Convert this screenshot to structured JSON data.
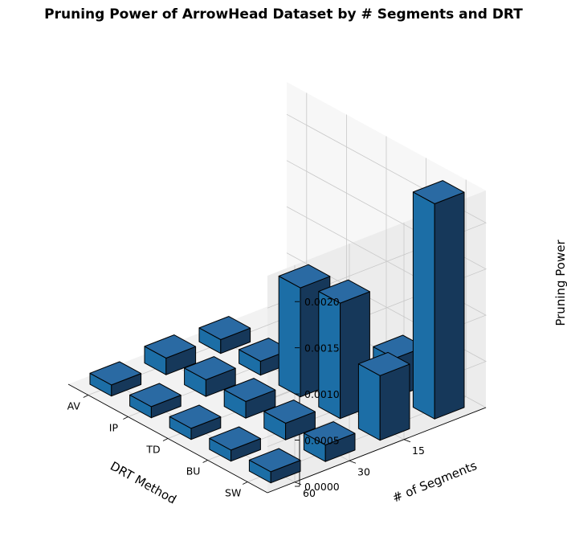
{
  "chart_data": {
    "type": "bar3d",
    "title": "Pruning Power of ArrowHead Dataset by # Segments and DRT",
    "xlabel": "DRT Method",
    "ylabel": "# of Segments",
    "zlabel": "Pruning Power",
    "drt_methods": [
      "AV",
      "IP",
      "TD",
      "BU",
      "SW"
    ],
    "segments": [
      "60",
      "30",
      "15"
    ],
    "z_ticks": [
      "0.0000",
      "0.0005",
      "0.0010",
      "0.0015",
      "0.0020"
    ],
    "zlim": [
      0,
      0.00235
    ],
    "series": [
      {
        "name": "60",
        "values": [
          0.00012,
          0.00012,
          0.00012,
          0.00012,
          0.00012
        ]
      },
      {
        "name": "30",
        "values": [
          0.00018,
          0.00018,
          0.00018,
          0.00018,
          0.00018
        ]
      },
      {
        "name": "15",
        "values": [
          0.00015,
          0.00015,
          0.00118,
          0.00125,
          0.0007
        ]
      },
      {
        "name": "",
        "values": [
          0,
          0,
          0,
          0.00042,
          0.00233
        ]
      }
    ],
    "bar_color": "#1f77b4",
    "edge_color": "#000000"
  }
}
